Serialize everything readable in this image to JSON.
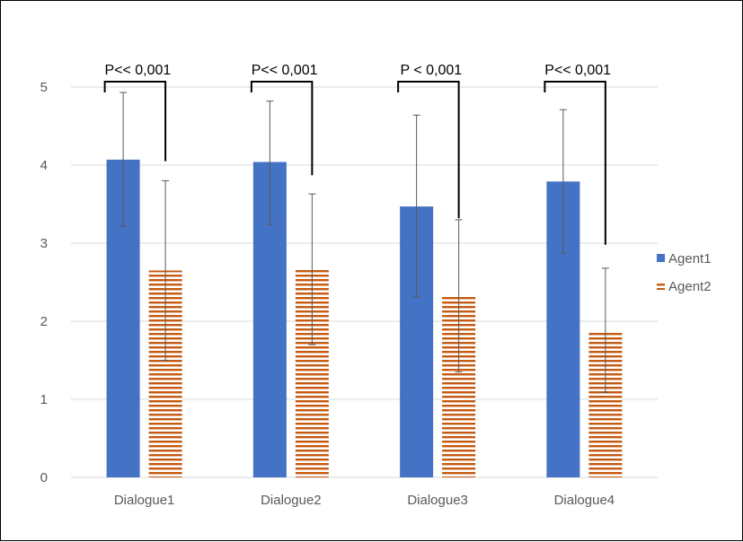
{
  "chart_data": {
    "type": "bar",
    "title": "",
    "xlabel": "",
    "ylabel": "",
    "ylim": [
      0,
      5
    ],
    "yticks": [
      0,
      1,
      2,
      3,
      4,
      5
    ],
    "grid": true,
    "legend_position": "right",
    "categories": [
      "Dialogue1",
      "Dialogue2",
      "Dialogue3",
      "Dialogue4"
    ],
    "series": [
      {
        "name": "Agent1",
        "color": "#4472C4",
        "pattern": "solid",
        "values": [
          4.07,
          4.04,
          3.47,
          3.79
        ],
        "error_low": [
          3.22,
          3.24,
          2.31,
          2.87
        ],
        "error_high": [
          4.93,
          4.82,
          4.64,
          4.71
        ]
      },
      {
        "name": "Agent2",
        "color": "#C55A11",
        "pattern": "horizontal-stripes",
        "values": [
          2.65,
          2.66,
          2.32,
          1.88
        ],
        "error_low": [
          1.5,
          1.7,
          1.35,
          1.09
        ],
        "error_high": [
          3.8,
          3.63,
          3.3,
          2.68
        ]
      }
    ],
    "annotations": [
      "P<< 0,001",
      "P<< 0,001",
      "P < 0,001",
      "P<< 0,001"
    ]
  }
}
